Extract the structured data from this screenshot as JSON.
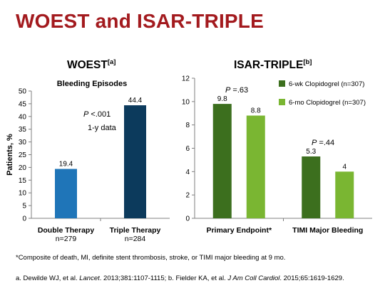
{
  "title": "WOEST and ISAR-TRIPLE",
  "footnote": "*Composite of death, MI, definite stent thrombosis, stroke, or TIMI major bleeding at 9 mo.",
  "references": {
    "a_text": "a. Dewilde WJ, et al. ",
    "a_journal": "Lancet",
    "a_cite": ". 2013;381:1107-1115; b. Fielder KA, et al. ",
    "b_journal": "J Am Coll Cardiol",
    "b_cite": ". 2015;65:1619-1629."
  },
  "chart_data": [
    {
      "type": "bar",
      "title": "WOEST",
      "title_sup": "[a]",
      "subtitle": "Bleeding Episodes",
      "ylabel": "Patients, %",
      "ylim": [
        0,
        50
      ],
      "yticks": [
        0,
        5,
        10,
        15,
        20,
        25,
        30,
        35,
        40,
        45,
        50
      ],
      "categories": [
        {
          "label": "Double Therapy",
          "sublabel": "n=279"
        },
        {
          "label": "Triple Therapy",
          "sublabel": "n=284"
        }
      ],
      "values": [
        19.4,
        44.4
      ],
      "value_labels": [
        "19.4",
        "44.4"
      ],
      "colors": [
        "#1f75b8",
        "#0c3a5c"
      ],
      "annotations": [
        {
          "p_prefix": "P",
          "p_value": " <.001"
        },
        {
          "text": "1-y data"
        }
      ]
    },
    {
      "type": "bar",
      "title": "ISAR-TRIPLE",
      "title_sup": "[b]",
      "ylim": [
        0,
        12
      ],
      "yticks": [
        0,
        2,
        4,
        6,
        8,
        10,
        12
      ],
      "categories": [
        "Primary Endpoint*",
        "TIMI Major Bleeding"
      ],
      "series": [
        {
          "name": "6-wk Clopidogrel (n=307)",
          "color": "#3c6f1e",
          "values": [
            9.8,
            5.3
          ],
          "value_labels": [
            "9.8",
            "5.3"
          ]
        },
        {
          "name": "6-mo Clopidogrel (n=307)",
          "color": "#7ab632",
          "values": [
            8.8,
            4
          ],
          "value_labels": [
            "8.8",
            "4"
          ]
        }
      ],
      "p_values": [
        {
          "p_prefix": "P",
          "p_value": " =.63"
        },
        {
          "p_prefix": "P",
          "p_value": " =.44"
        }
      ],
      "legend_position": "top-right"
    }
  ]
}
